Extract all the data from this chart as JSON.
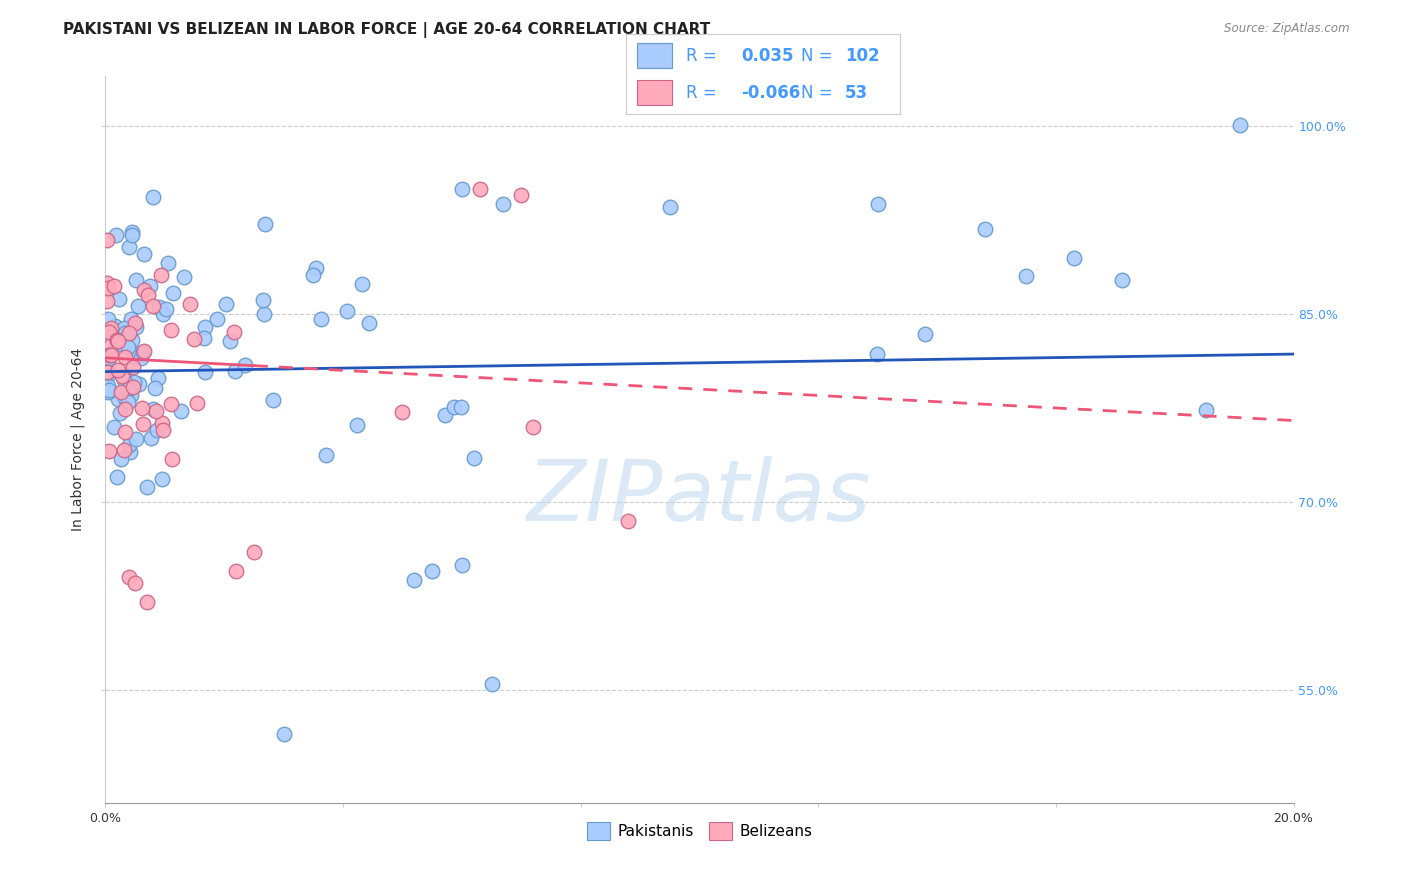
{
  "title": "PAKISTANI VS BELIZEAN IN LABOR FORCE | AGE 20-64 CORRELATION CHART",
  "source": "Source: ZipAtlas.com",
  "ylabel": "In Labor Force | Age 20-64",
  "xlim": [
    0.0,
    0.2
  ],
  "ylim": [
    0.46,
    1.04
  ],
  "yticks": [
    0.55,
    0.7,
    0.85,
    1.0
  ],
  "right_ytick_labels": [
    "55.0%",
    "70.0%",
    "85.0%",
    "100.0%"
  ],
  "right_ytick_color": "#4499ff",
  "pakistani_color": "#aaccff",
  "pakistani_edge": "#6699cc",
  "belizean_color": "#ffaabb",
  "belizean_edge": "#cc6688",
  "trend_pakistani_color": "#2255bb",
  "trend_belizean_color": "#ee5577",
  "R_pakistani": 0.035,
  "N_pakistani": 102,
  "R_belizean": -0.066,
  "N_belizean": 53,
  "watermark": "ZIPatlas",
  "grid_color": "#cccccc",
  "bg_color": "#ffffff",
  "title_fontsize": 11,
  "axis_label_fontsize": 10,
  "tick_fontsize": 9,
  "legend_text_color": "#4499ff",
  "trend_pak_y0": 0.804,
  "trend_pak_y1": 0.818,
  "trend_bel_y0": 0.815,
  "trend_bel_y1": 0.765,
  "trend_bel_solid_end": 0.025,
  "trend_bel_dash_end": 0.2
}
